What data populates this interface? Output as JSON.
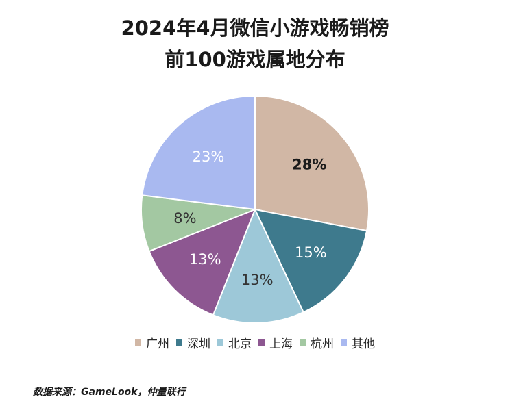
{
  "title_lines": [
    "2024年4月微信小游戏畅销榜",
    "前100游戏属地分布"
  ],
  "chart_data": {
    "type": "pie",
    "title": "2024年4月微信小游戏畅销榜 前100游戏属地分布",
    "categories": [
      "广州",
      "深圳",
      "北京",
      "上海",
      "杭州",
      "其他"
    ],
    "values": [
      28,
      15,
      13,
      13,
      8,
      23
    ],
    "labels": [
      "28%",
      "15%",
      "13%",
      "13%",
      "8%",
      "23%"
    ],
    "colors": [
      "#d1b7a5",
      "#3e7a8d",
      "#9dc8d8",
      "#8d5791",
      "#a3c8a2",
      "#a9b9f0"
    ],
    "label_colors": [
      "#1a1a1a",
      "#ffffff",
      "#333333",
      "#ffffff",
      "#333333",
      "#ffffff"
    ],
    "start_angle": "12 o'clock",
    "direction": "clockwise",
    "legend_position": "bottom"
  },
  "source": "数据来源：GameLook，仲量联行"
}
